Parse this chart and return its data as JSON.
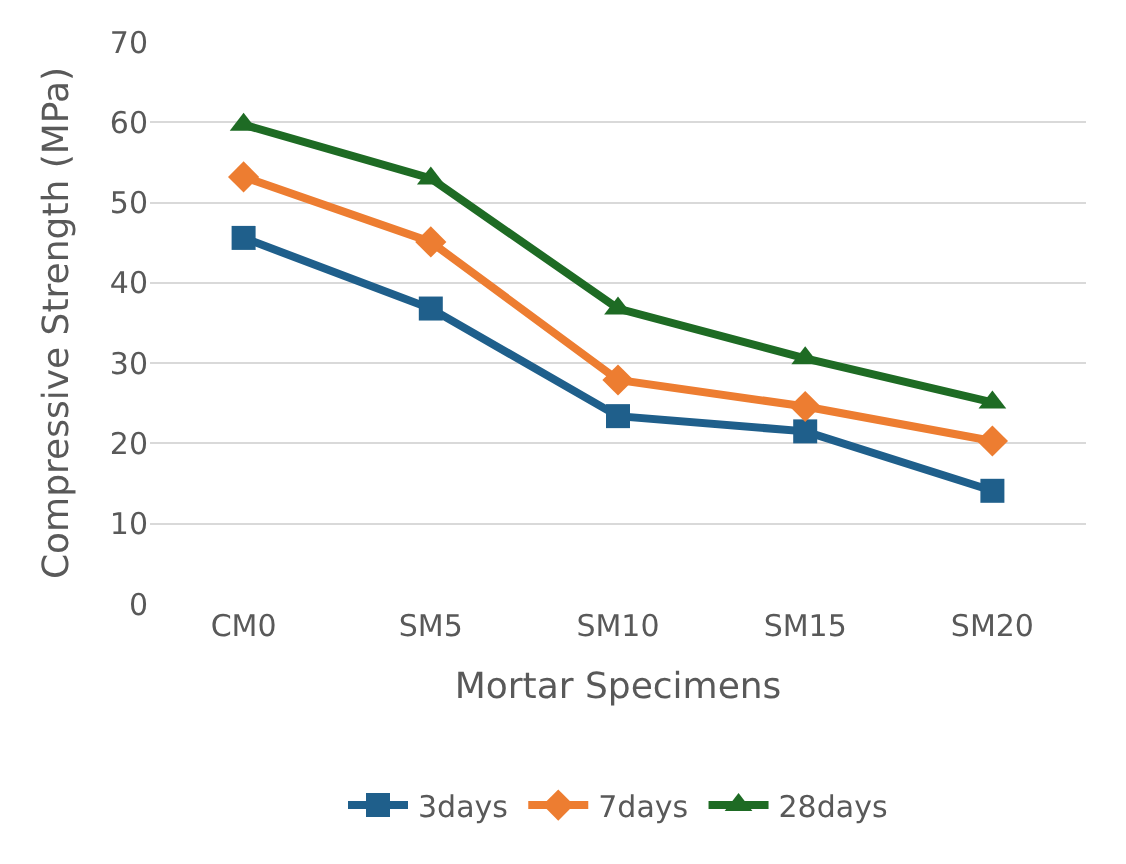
{
  "chart_data": {
    "type": "line",
    "xlabel": "Mortar Specimens",
    "ylabel": "Compressive Strength (MPa)",
    "categories": [
      "CM0",
      "SM5",
      "SM10",
      "SM15",
      "SM20"
    ],
    "series": [
      {
        "name": "3days",
        "color": "#1f5f8b",
        "marker": "square",
        "values": [
          45.6,
          36.8,
          23.4,
          21.5,
          14.1
        ]
      },
      {
        "name": "7days",
        "color": "#ed7d31",
        "marker": "diamond",
        "values": [
          53.2,
          45.1,
          27.9,
          24.6,
          20.3
        ]
      },
      {
        "name": "28days",
        "color": "#1e6b24",
        "marker": "triangle",
        "values": [
          59.7,
          53.0,
          36.8,
          30.6,
          25.1
        ]
      }
    ],
    "ylim": [
      0,
      70
    ],
    "yticks": [
      0,
      10,
      20,
      30,
      40,
      50,
      60,
      70
    ],
    "grid": "y",
    "legend": "bottom",
    "line_style": "solid"
  }
}
